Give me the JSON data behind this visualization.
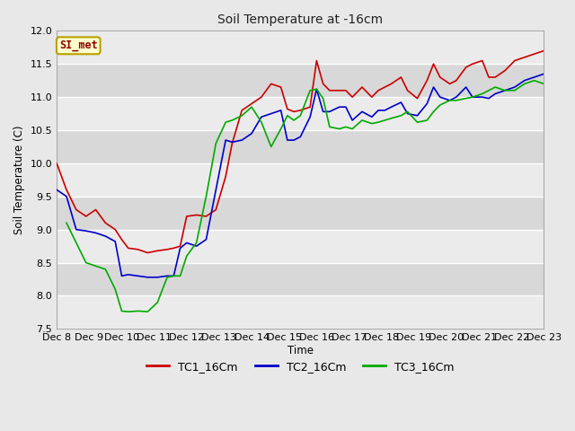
{
  "title": "Soil Temperature at -16cm",
  "xlabel": "Time",
  "ylabel": "Soil Temperature (C)",
  "ylim": [
    7.5,
    12.0
  ],
  "x_tick_labels": [
    "Dec 8",
    "Dec 9",
    "Dec 10",
    "Dec 11",
    "Dec 12",
    "Dec 13",
    "Dec 14",
    "Dec 15",
    "Dec 16",
    "Dec 17",
    "Dec 18",
    "Dec 19",
    "Dec 20",
    "Dec 21",
    "Dec 22",
    "Dec 23"
  ],
  "fig_bg_color": "#e8e8e8",
  "plot_bg_color": "#e0e0e0",
  "band_light_color": "#ebebeb",
  "band_dark_color": "#d8d8d8",
  "grid_color": "#ffffff",
  "legend_label": "SI_met",
  "series": {
    "TC1_16Cm": {
      "color": "#cc0000",
      "label": "TC1_16Cm"
    },
    "TC2_16Cm": {
      "color": "#0000cc",
      "label": "TC2_16Cm"
    },
    "TC3_16Cm": {
      "color": "#00aa00",
      "label": "TC3_16Cm"
    }
  },
  "TC1_x": [
    0,
    0.3,
    0.6,
    0.9,
    1.2,
    1.5,
    1.8,
    2.0,
    2.2,
    2.5,
    2.8,
    3.1,
    3.4,
    3.6,
    3.8,
    4.0,
    4.3,
    4.6,
    4.9,
    5.2,
    5.4,
    5.7,
    6.0,
    6.3,
    6.6,
    6.9,
    7.1,
    7.3,
    7.5,
    7.8,
    8.0,
    8.2,
    8.4,
    8.7,
    8.9,
    9.1,
    9.4,
    9.7,
    9.9,
    10.1,
    10.3,
    10.6,
    10.8,
    11.1,
    11.4,
    11.6,
    11.8,
    12.1,
    12.3,
    12.6,
    12.8,
    13.1,
    13.3,
    13.5,
    13.8,
    14.1,
    14.4,
    14.7,
    15.0
  ],
  "TC1_y": [
    10.0,
    9.6,
    9.3,
    9.2,
    9.3,
    9.1,
    9.0,
    8.85,
    8.72,
    8.7,
    8.65,
    8.68,
    8.7,
    8.72,
    8.75,
    9.2,
    9.22,
    9.2,
    9.3,
    9.8,
    10.3,
    10.8,
    10.9,
    11.0,
    11.2,
    11.15,
    10.82,
    10.78,
    10.8,
    10.85,
    11.55,
    11.2,
    11.1,
    11.1,
    11.1,
    11.0,
    11.15,
    11.0,
    11.1,
    11.15,
    11.2,
    11.3,
    11.1,
    10.98,
    11.25,
    11.5,
    11.3,
    11.2,
    11.25,
    11.45,
    11.5,
    11.55,
    11.3,
    11.3,
    11.4,
    11.55,
    11.6,
    11.65,
    11.7
  ],
  "TC2_x": [
    0,
    0.3,
    0.6,
    0.9,
    1.2,
    1.5,
    1.8,
    2.0,
    2.2,
    2.5,
    2.8,
    3.1,
    3.4,
    3.6,
    3.8,
    4.0,
    4.3,
    4.6,
    4.9,
    5.2,
    5.4,
    5.7,
    6.0,
    6.3,
    6.6,
    6.9,
    7.1,
    7.3,
    7.5,
    7.8,
    8.0,
    8.2,
    8.4,
    8.7,
    8.9,
    9.1,
    9.4,
    9.7,
    9.9,
    10.1,
    10.3,
    10.6,
    10.8,
    11.1,
    11.4,
    11.6,
    11.8,
    12.1,
    12.3,
    12.6,
    12.8,
    13.1,
    13.3,
    13.5,
    13.8,
    14.1,
    14.4,
    14.7,
    15.0
  ],
  "TC2_y": [
    9.6,
    9.5,
    9.0,
    8.98,
    8.95,
    8.9,
    8.82,
    8.3,
    8.32,
    8.3,
    8.28,
    8.28,
    8.3,
    8.3,
    8.72,
    8.8,
    8.75,
    8.85,
    9.6,
    10.35,
    10.32,
    10.35,
    10.45,
    10.7,
    10.75,
    10.8,
    10.35,
    10.35,
    10.4,
    10.7,
    11.12,
    10.78,
    10.78,
    10.85,
    10.85,
    10.65,
    10.78,
    10.7,
    10.8,
    10.8,
    10.85,
    10.92,
    10.75,
    10.72,
    10.9,
    11.15,
    11.0,
    10.95,
    11.0,
    11.15,
    11.0,
    11.0,
    10.98,
    11.05,
    11.1,
    11.15,
    11.25,
    11.3,
    11.35
  ],
  "TC3_x": [
    0.3,
    0.6,
    0.9,
    1.2,
    1.5,
    1.8,
    2.0,
    2.2,
    2.5,
    2.8,
    3.1,
    3.4,
    3.6,
    3.8,
    4.0,
    4.3,
    4.6,
    4.9,
    5.2,
    5.4,
    5.7,
    6.0,
    6.3,
    6.6,
    6.9,
    7.1,
    7.3,
    7.5,
    7.8,
    8.0,
    8.2,
    8.4,
    8.7,
    8.9,
    9.1,
    9.4,
    9.7,
    9.9,
    10.1,
    10.3,
    10.6,
    10.8,
    11.1,
    11.4,
    11.6,
    11.8,
    12.1,
    12.3,
    12.6,
    12.8,
    13.1,
    13.3,
    13.5,
    13.8,
    14.1,
    14.4,
    14.7,
    15.0
  ],
  "TC3_y": [
    9.1,
    8.8,
    8.5,
    8.45,
    8.4,
    8.1,
    7.77,
    7.76,
    7.77,
    7.76,
    7.9,
    8.28,
    8.3,
    8.3,
    8.6,
    8.8,
    9.5,
    10.3,
    10.62,
    10.65,
    10.72,
    10.85,
    10.62,
    10.25,
    10.52,
    10.72,
    10.65,
    10.72,
    11.1,
    11.12,
    10.98,
    10.55,
    10.52,
    10.55,
    10.52,
    10.65,
    10.6,
    10.62,
    10.65,
    10.68,
    10.72,
    10.78,
    10.62,
    10.65,
    10.78,
    10.88,
    10.95,
    10.95,
    10.98,
    11.0,
    11.05,
    11.1,
    11.15,
    11.1,
    11.1,
    11.2,
    11.25,
    11.2
  ],
  "yticks": [
    7.5,
    8.0,
    8.5,
    9.0,
    9.5,
    10.0,
    10.5,
    11.0,
    11.5,
    12.0
  ]
}
